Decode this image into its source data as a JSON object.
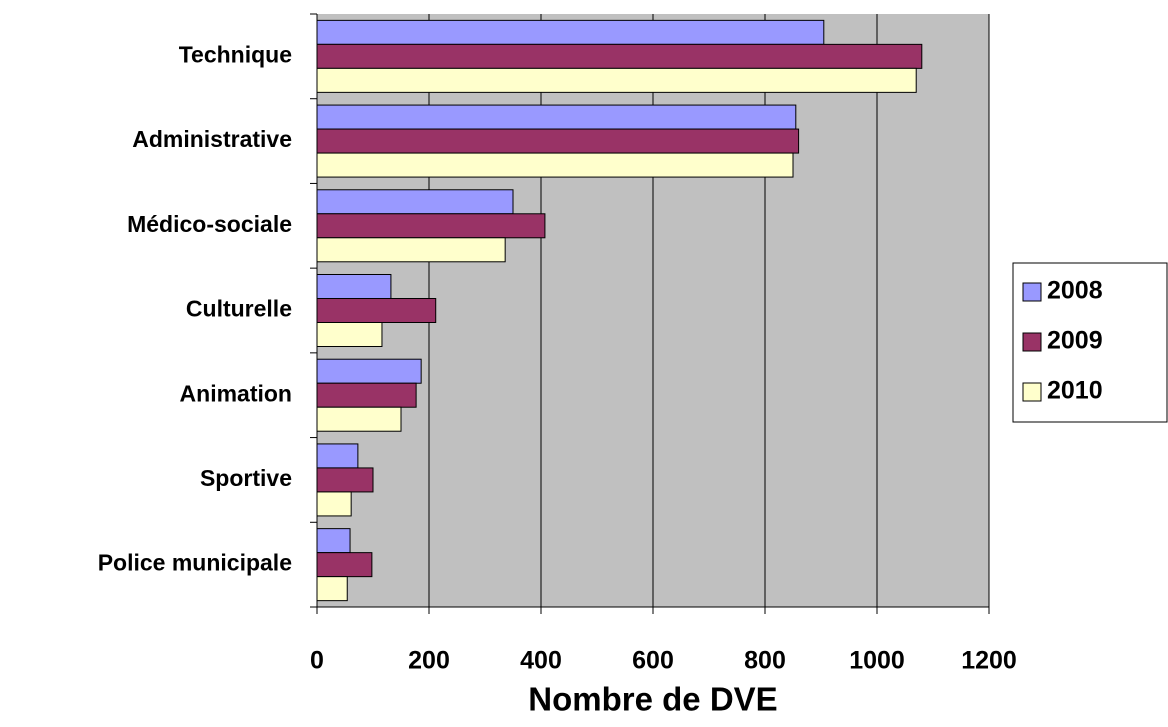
{
  "chart_data": {
    "type": "hbar",
    "x_label": "Nombre de DVE",
    "categories": [
      "Technique",
      "Administrative",
      "Médico-sociale",
      "Culturelle",
      "Animation",
      "Sportive",
      "Police municipale"
    ],
    "series": [
      {
        "name": "2008",
        "color": "#9999ff",
        "values": [
          905,
          855,
          350,
          132,
          186,
          73,
          59
        ]
      },
      {
        "name": "2009",
        "color": "#993366",
        "values": [
          1080,
          860,
          407,
          212,
          177,
          100,
          98
        ]
      },
      {
        "name": "2010",
        "color": "#ffffcc",
        "values": [
          1070,
          850,
          336,
          116,
          150,
          61,
          54
        ]
      }
    ],
    "xlim": [
      0,
      1200
    ],
    "xticks": [
      0,
      200,
      400,
      600,
      800,
      1000,
      1200
    ],
    "grid": true,
    "legend": "right",
    "plot_background": "#c0c0c0"
  }
}
